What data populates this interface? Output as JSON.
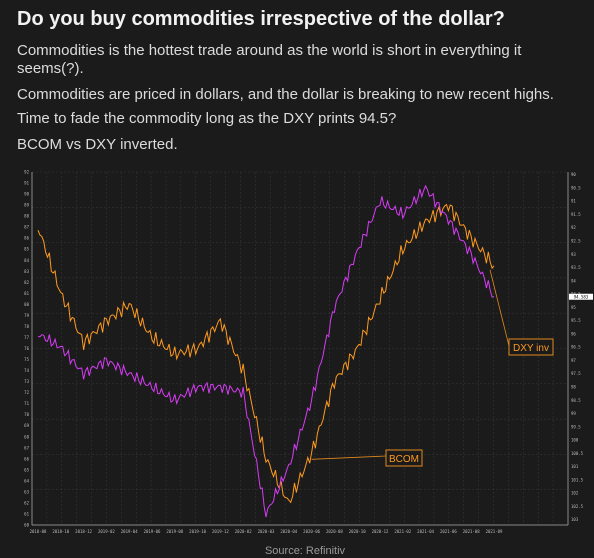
{
  "header": {
    "title": "Do you buy commodities irrespective of the dollar?",
    "paragraphs": [
      "Commodities is the hottest trade around as the world is short in everything it seems(?).",
      "Commodities are priced in dollars, and the dollar is breaking to new recent highs.",
      "Time to fade the commodity long as the DXY prints 94.5?",
      "BCOM vs DXY inverted."
    ]
  },
  "source": "Source: Refinitiv",
  "colors": {
    "bcom": "#ff9a1f",
    "dxy_inv": "#d63cf5",
    "background": "#1b1b1b",
    "annotation": "#e08a1e"
  },
  "chart_data": {
    "type": "line",
    "x": [
      "2018-08",
      "2018-10",
      "2018-12",
      "2019-02",
      "2019-04",
      "2019-06",
      "2019-08",
      "2019-10",
      "2019-12",
      "2020-02",
      "2020-03",
      "2020-04",
      "2020-06",
      "2020-08",
      "2020-10",
      "2020-12",
      "2021-02",
      "2021-04",
      "2021-06",
      "2021-08",
      "2021-09"
    ],
    "series": [
      {
        "name": "BCOM",
        "axis": "left",
        "values": [
          87.0,
          81.0,
          76.5,
          78.5,
          80.0,
          77.0,
          75.5,
          76.0,
          78.5,
          74.0,
          66.0,
          62.0,
          66.5,
          73.0,
          76.0,
          80.5,
          85.0,
          87.5,
          89.0,
          86.0,
          83.5
        ]
      },
      {
        "name": "DXY inv",
        "axis": "right",
        "values": [
          96.0,
          96.5,
          97.5,
          97.0,
          97.5,
          98.0,
          98.5,
          98.0,
          98.0,
          98.2,
          102.8,
          101.0,
          98.5,
          95.0,
          92.9,
          91.0,
          91.5,
          90.5,
          91.7,
          93.0,
          94.6
        ]
      }
    ],
    "annotations": [
      {
        "label": "BCOM",
        "series": "BCOM"
      },
      {
        "label": "DXY inv",
        "series": "DXY inv"
      }
    ],
    "last_value_marker": "94.583"
  }
}
